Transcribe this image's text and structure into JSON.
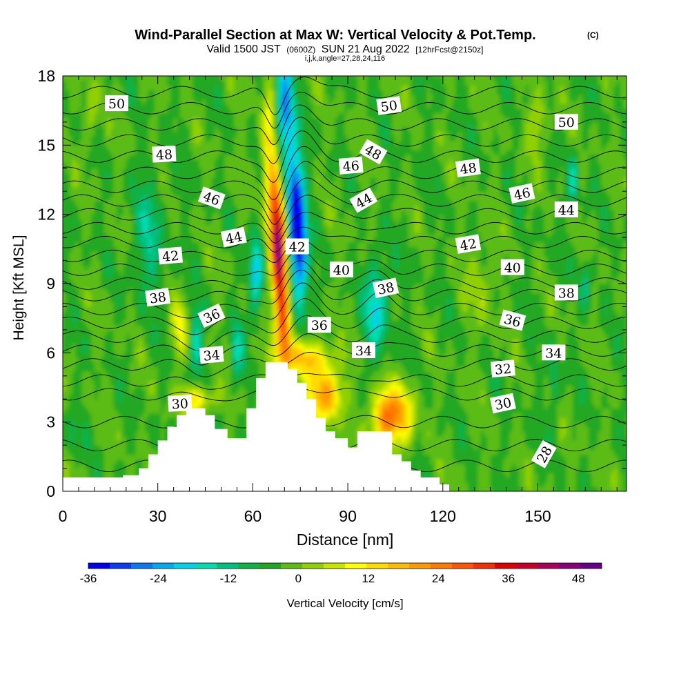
{
  "chart_data": {
    "type": "heatmap",
    "title": "Wind-Parallel Section at Max W: Vertical Velocity & Pot.Temp.",
    "title_mark": "(C)",
    "subtitle_main": "Valid 1500 JST",
    "subtitle_utc": "(0600Z)",
    "subtitle_date": "SUN 21 Aug 2022",
    "subtitle_fcst": "[12hrFcst@2150z]",
    "grid_info": "i,j,k,angle=27,28,24,116",
    "xlabel": "Distance [nm]",
    "ylabel": "Height [Kft MSL]",
    "xlim": [
      0,
      178
    ],
    "ylim": [
      0,
      18
    ],
    "x_ticks": [
      "0",
      "30",
      "60",
      "90",
      "120",
      "150"
    ],
    "x_tick_values": [
      0,
      30,
      60,
      90,
      120,
      150
    ],
    "y_ticks": [
      "0",
      "3",
      "6",
      "9",
      "12",
      "15",
      "18"
    ],
    "y_tick_values": [
      0,
      3,
      6,
      9,
      12,
      15,
      18
    ],
    "colorbar": {
      "label": "Vertical Velocity [cm/s]",
      "tick_labels": [
        "-36",
        "-24",
        "-12",
        "0",
        "12",
        "24",
        "36",
        "48"
      ],
      "tick_values": [
        -36,
        -24,
        -12,
        0,
        12,
        24,
        36,
        48
      ],
      "range": [
        -36,
        52
      ],
      "step": 4,
      "colors": [
        "#0000ee",
        "#0a3cf5",
        "#0a78f0",
        "#00aaf0",
        "#00d2ea",
        "#00ddb0",
        "#00c080",
        "#10b248",
        "#20a820",
        "#5cbc14",
        "#90d000",
        "#c8e400",
        "#ffff00",
        "#ffdc00",
        "#ffbb00",
        "#ff9900",
        "#ff7800",
        "#ff5500",
        "#f43000",
        "#e00000",
        "#c80028",
        "#aa005a",
        "#880078",
        "#66008a"
      ]
    },
    "terrain_kft": [
      {
        "x": 0,
        "h": 0.6
      },
      {
        "x": 19,
        "h": 0.6
      },
      {
        "x": 19,
        "h": 0.7
      },
      {
        "x": 24,
        "h": 0.7
      },
      {
        "x": 24,
        "h": 1.0
      },
      {
        "x": 27,
        "h": 1.0
      },
      {
        "x": 27,
        "h": 1.6
      },
      {
        "x": 30,
        "h": 1.6
      },
      {
        "x": 30,
        "h": 2.2
      },
      {
        "x": 33,
        "h": 2.2
      },
      {
        "x": 33,
        "h": 2.8
      },
      {
        "x": 36,
        "h": 2.8
      },
      {
        "x": 36,
        "h": 3.3
      },
      {
        "x": 39,
        "h": 3.3
      },
      {
        "x": 39,
        "h": 3.6
      },
      {
        "x": 45,
        "h": 3.6
      },
      {
        "x": 45,
        "h": 3.3
      },
      {
        "x": 48,
        "h": 3.3
      },
      {
        "x": 48,
        "h": 2.7
      },
      {
        "x": 52,
        "h": 2.7
      },
      {
        "x": 52,
        "h": 2.3
      },
      {
        "x": 58,
        "h": 2.3
      },
      {
        "x": 58,
        "h": 3.6
      },
      {
        "x": 61,
        "h": 3.6
      },
      {
        "x": 61,
        "h": 4.9
      },
      {
        "x": 64,
        "h": 4.9
      },
      {
        "x": 64,
        "h": 5.6
      },
      {
        "x": 71,
        "h": 5.6
      },
      {
        "x": 71,
        "h": 5.3
      },
      {
        "x": 74,
        "h": 5.3
      },
      {
        "x": 74,
        "h": 4.7
      },
      {
        "x": 77,
        "h": 4.7
      },
      {
        "x": 77,
        "h": 4.0
      },
      {
        "x": 80,
        "h": 4.0
      },
      {
        "x": 80,
        "h": 3.2
      },
      {
        "x": 83,
        "h": 3.2
      },
      {
        "x": 83,
        "h": 2.6
      },
      {
        "x": 86,
        "h": 2.6
      },
      {
        "x": 86,
        "h": 2.3
      },
      {
        "x": 90,
        "h": 2.3
      },
      {
        "x": 90,
        "h": 1.9
      },
      {
        "x": 93,
        "h": 1.9
      },
      {
        "x": 93,
        "h": 2.6
      },
      {
        "x": 104,
        "h": 2.6
      },
      {
        "x": 104,
        "h": 1.6
      },
      {
        "x": 107,
        "h": 1.6
      },
      {
        "x": 107,
        "h": 1.3
      },
      {
        "x": 110,
        "h": 1.3
      },
      {
        "x": 110,
        "h": 0.9
      },
      {
        "x": 113,
        "h": 0.9
      },
      {
        "x": 113,
        "h": 0.6
      },
      {
        "x": 119,
        "h": 0.6
      },
      {
        "x": 119,
        "h": 0.3
      },
      {
        "x": 122,
        "h": 0.3
      },
      {
        "x": 122,
        "h": 0.0
      },
      {
        "x": 178,
        "h": 0.0
      }
    ],
    "w_features": [
      {
        "x": 68,
        "y": 10.5,
        "sx": 2.4,
        "sy": 3.2,
        "v": 55,
        "tilt": -0.32
      },
      {
        "x": 70,
        "y": 7.0,
        "sx": 2.0,
        "sy": 1.6,
        "v": 20,
        "tilt": -0.3
      },
      {
        "x": 74,
        "y": 11.5,
        "sx": 2.6,
        "sy": 3.0,
        "v": -46,
        "tilt": -0.28
      },
      {
        "x": 70,
        "y": 16.5,
        "sx": 2.8,
        "sy": 2.5,
        "v": -24,
        "tilt": 0.1
      },
      {
        "x": 65,
        "y": 15.0,
        "sx": 2.3,
        "sy": 3.0,
        "v": 14,
        "tilt": 0
      },
      {
        "x": 61,
        "y": 9.5,
        "sx": 2.0,
        "sy": 1.8,
        "v": -20,
        "tilt": 0
      },
      {
        "x": 76,
        "y": 5.8,
        "sx": 9.0,
        "sy": 0.8,
        "v": 20,
        "tilt": 0
      },
      {
        "x": 83,
        "y": 4.2,
        "sx": 5.0,
        "sy": 1.1,
        "v": 26,
        "tilt": 0
      },
      {
        "x": 102,
        "y": 3.2,
        "sx": 4.5,
        "sy": 1.2,
        "v": 30,
        "tilt": 0
      },
      {
        "x": 108,
        "y": 3.5,
        "sx": 4.0,
        "sy": 1.3,
        "v": 14,
        "tilt": 0
      },
      {
        "x": 99,
        "y": 8.0,
        "sx": 3.5,
        "sy": 2.0,
        "v": -18,
        "tilt": 0
      },
      {
        "x": 42,
        "y": 4.0,
        "sx": 6.0,
        "sy": 0.6,
        "v": 16,
        "tilt": 0
      },
      {
        "x": 37,
        "y": 7.0,
        "sx": 3.0,
        "sy": 1.2,
        "v": 12,
        "tilt": 0
      },
      {
        "x": 42,
        "y": 6.6,
        "sx": 2.2,
        "sy": 1.4,
        "v": -14,
        "tilt": 0
      },
      {
        "x": 55,
        "y": 6.0,
        "sx": 2.0,
        "sy": 1.5,
        "v": -12,
        "tilt": 0
      },
      {
        "x": 27,
        "y": 11.0,
        "sx": 5.0,
        "sy": 2.5,
        "v": -10,
        "tilt": 0
      },
      {
        "x": 161,
        "y": 13.5,
        "sx": 1.6,
        "sy": 1.2,
        "v": -14,
        "tilt": 0
      },
      {
        "x": 165,
        "y": 9.0,
        "sx": 1.5,
        "sy": 1.2,
        "v": -10,
        "tilt": 0
      },
      {
        "x": 155,
        "y": 4.8,
        "sx": 1.5,
        "sy": 1.5,
        "v": -10,
        "tilt": 0
      },
      {
        "x": 3,
        "y": 2.5,
        "sx": 1.5,
        "sy": 0.8,
        "v": -8,
        "tilt": 0
      },
      {
        "x": 9,
        "y": 16.5,
        "sx": 2.0,
        "sy": 1.5,
        "v": 8,
        "tilt": 0
      },
      {
        "x": 150,
        "y": 16.0,
        "sx": 3.0,
        "sy": 1.2,
        "v": 9,
        "tilt": 0
      },
      {
        "x": 132,
        "y": 9.0,
        "sx": 4.0,
        "sy": 2.0,
        "v": 7,
        "tilt": 0
      }
    ],
    "theta_contours": [
      {
        "theta": 28,
        "y0": 1.1
      },
      {
        "theta": 29,
        "y0": 2.0
      },
      {
        "theta": 30,
        "y0": 3.0
      },
      {
        "theta": 31,
        "y0": 4.2
      },
      {
        "theta": 32,
        "y0": 4.8
      },
      {
        "theta": 33,
        "y0": 5.5
      },
      {
        "theta": 34,
        "y0": 6.1
      },
      {
        "theta": 35,
        "y0": 6.7
      },
      {
        "theta": 36,
        "y0": 7.3
      },
      {
        "theta": 37,
        "y0": 7.9
      },
      {
        "theta": 38,
        "y0": 8.5
      },
      {
        "theta": 39,
        "y0": 9.0
      },
      {
        "theta": 40,
        "y0": 9.6
      },
      {
        "theta": 41,
        "y0": 10.2
      },
      {
        "theta": 42,
        "y0": 10.8
      },
      {
        "theta": 43,
        "y0": 11.4
      },
      {
        "theta": 44,
        "y0": 12.0
      },
      {
        "theta": 45,
        "y0": 12.6
      },
      {
        "theta": 46,
        "y0": 13.2
      },
      {
        "theta": 47,
        "y0": 13.8
      },
      {
        "theta": 48,
        "y0": 14.5
      },
      {
        "theta": 49,
        "y0": 15.2
      },
      {
        "theta": 50,
        "y0": 15.9
      },
      {
        "theta": 51,
        "y0": 16.6
      },
      {
        "theta": 52,
        "y0": 17.3
      }
    ],
    "contour_labels": [
      {
        "text": "50",
        "x": 17,
        "y": 16.8,
        "angle": 0
      },
      {
        "text": "50",
        "x": 103,
        "y": 16.7,
        "angle": -8
      },
      {
        "text": "50",
        "x": 159,
        "y": 16.0,
        "angle": 0
      },
      {
        "text": "48",
        "x": 32,
        "y": 14.6,
        "angle": -3
      },
      {
        "text": "48",
        "x": 98,
        "y": 14.7,
        "angle": 30
      },
      {
        "text": "48",
        "x": 128,
        "y": 14.0,
        "angle": -8
      },
      {
        "text": "46",
        "x": 47,
        "y": 12.7,
        "angle": 20
      },
      {
        "text": "46",
        "x": 91,
        "y": 14.1,
        "angle": -5
      },
      {
        "text": "46",
        "x": 145,
        "y": 12.9,
        "angle": -12
      },
      {
        "text": "44",
        "x": 54,
        "y": 11.0,
        "angle": -12
      },
      {
        "text": "44",
        "x": 95,
        "y": 12.6,
        "angle": -30
      },
      {
        "text": "44",
        "x": 159,
        "y": 12.2,
        "angle": 0
      },
      {
        "text": "42",
        "x": 34,
        "y": 10.2,
        "angle": -5
      },
      {
        "text": "42",
        "x": 74,
        "y": 10.6,
        "angle": 0
      },
      {
        "text": "42",
        "x": 128,
        "y": 10.7,
        "angle": -10
      },
      {
        "text": "40",
        "x": 88,
        "y": 9.6,
        "angle": 0
      },
      {
        "text": "40",
        "x": 142,
        "y": 9.7,
        "angle": 0
      },
      {
        "text": "38",
        "x": 30,
        "y": 8.4,
        "angle": -8
      },
      {
        "text": "38",
        "x": 102,
        "y": 8.8,
        "angle": -12
      },
      {
        "text": "38",
        "x": 159,
        "y": 8.6,
        "angle": 0
      },
      {
        "text": "36",
        "x": 47,
        "y": 7.6,
        "angle": -25
      },
      {
        "text": "36",
        "x": 81,
        "y": 7.2,
        "angle": 0
      },
      {
        "text": "36",
        "x": 142,
        "y": 7.4,
        "angle": 15
      },
      {
        "text": "34",
        "x": 47,
        "y": 5.9,
        "angle": -5
      },
      {
        "text": "34",
        "x": 95,
        "y": 6.1,
        "angle": 0
      },
      {
        "text": "34",
        "x": 155,
        "y": 6.0,
        "angle": 0
      },
      {
        "text": "32",
        "x": 139,
        "y": 5.3,
        "angle": -5
      },
      {
        "text": "30",
        "x": 37,
        "y": 3.8,
        "angle": -3
      },
      {
        "text": "30",
        "x": 139,
        "y": 3.8,
        "angle": -12
      },
      {
        "text": "28",
        "x": 152,
        "y": 1.6,
        "angle": -60
      }
    ]
  }
}
